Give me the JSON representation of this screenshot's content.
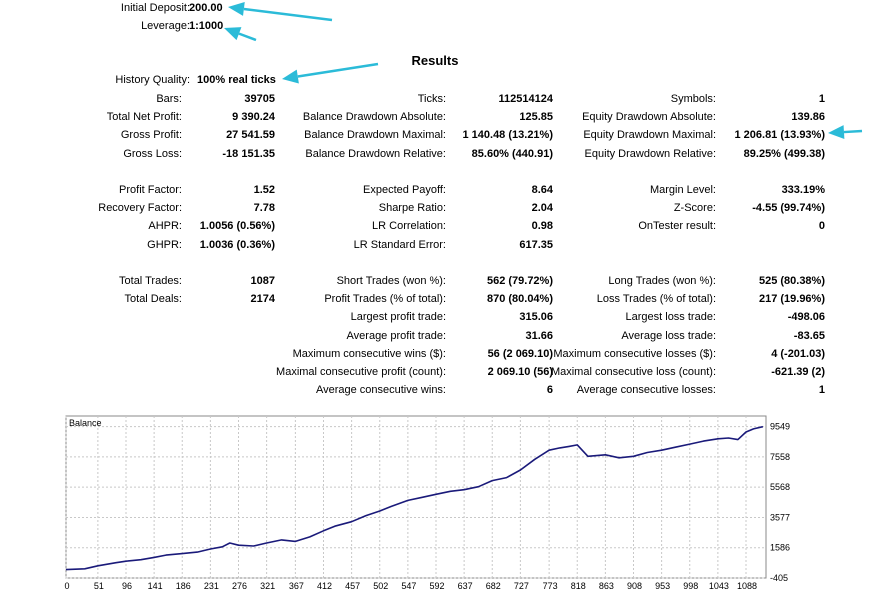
{
  "header": {
    "initial_deposit_label": "Initial Deposit:",
    "initial_deposit_value": "200.00",
    "leverage_label": "Leverage:",
    "leverage_value": "1:1000",
    "results_title": "Results",
    "history_quality_label": "History Quality:",
    "history_quality_value": "100% real ticks",
    "accent_color": "#2bbbd8"
  },
  "stats": [
    [
      {
        "label": "Bars:",
        "value": "39705"
      },
      {
        "label": "Total Net Profit:",
        "value": "9 390.24"
      },
      {
        "label": "Gross Profit:",
        "value": "27 541.59"
      },
      {
        "label": "Gross Loss:",
        "value": "-18 151.35"
      },
      null,
      {
        "label": "Profit Factor:",
        "value": "1.52"
      },
      {
        "label": "Recovery Factor:",
        "value": "7.78"
      },
      {
        "label": "AHPR:",
        "value": "1.0056 (0.56%)"
      },
      {
        "label": "GHPR:",
        "value": "1.0036 (0.36%)"
      },
      null,
      {
        "label": "Total Trades:",
        "value": "1087"
      },
      {
        "label": "Total Deals:",
        "value": "2174"
      }
    ],
    [
      {
        "label": "Ticks:",
        "value": "112514124"
      },
      {
        "label": "Balance Drawdown Absolute:",
        "value": "125.85"
      },
      {
        "label": "Balance Drawdown Maximal:",
        "value": "1 140.48 (13.21%)"
      },
      {
        "label": "Balance Drawdown Relative:",
        "value": "85.60% (440.91)"
      },
      null,
      {
        "label": "Expected Payoff:",
        "value": "8.64"
      },
      {
        "label": "Sharpe Ratio:",
        "value": "2.04"
      },
      {
        "label": "LR Correlation:",
        "value": "0.98"
      },
      {
        "label": "LR Standard Error:",
        "value": "617.35"
      },
      null,
      {
        "label": "Short Trades (won %):",
        "value": "562 (79.72%)"
      },
      {
        "label": "Profit Trades (% of total):",
        "value": "870 (80.04%)"
      },
      {
        "label": "Largest profit trade:",
        "value": "315.06"
      },
      {
        "label": "Average profit trade:",
        "value": "31.66"
      },
      {
        "label": "Maximum consecutive wins ($):",
        "value": "56 (2 069.10)"
      },
      {
        "label": "Maximal consecutive profit (count):",
        "value": "2 069.10 (56)"
      },
      {
        "label": "Average consecutive wins:",
        "value": "6"
      }
    ],
    [
      {
        "label": "Symbols:",
        "value": "1"
      },
      {
        "label": "Equity Drawdown Absolute:",
        "value": "139.86"
      },
      {
        "label": "Equity Drawdown Maximal:",
        "value": "1 206.81 (13.93%)"
      },
      {
        "label": "Equity Drawdown Relative:",
        "value": "89.25% (499.38)"
      },
      null,
      {
        "label": "Margin Level:",
        "value": "333.19%"
      },
      {
        "label": "Z-Score:",
        "value": "-4.55 (99.74%)"
      },
      {
        "label": "OnTester result:",
        "value": "0"
      },
      null,
      null,
      {
        "label": "Long Trades (won %):",
        "value": "525 (80.38%)"
      },
      {
        "label": "Loss Trades (% of total):",
        "value": "217 (19.96%)"
      },
      {
        "label": "Largest loss trade:",
        "value": "-498.06"
      },
      {
        "label": "Average loss trade:",
        "value": "-83.65"
      },
      {
        "label": "Maximum consecutive losses ($):",
        "value": "4 (-201.03)"
      },
      {
        "label": "Maximal consecutive loss (count):",
        "value": "-621.39 (2)"
      },
      {
        "label": "Average consecutive losses:",
        "value": "1"
      }
    ]
  ],
  "chart_data": {
    "type": "line",
    "title": "Balance",
    "line_color": "#1a1a7a",
    "grid": true,
    "x_ticks": [
      0,
      51,
      96,
      141,
      186,
      231,
      276,
      321,
      367,
      412,
      457,
      502,
      547,
      592,
      637,
      682,
      727,
      773,
      818,
      863,
      908,
      953,
      998,
      1043,
      1088
    ],
    "y_ticks": [
      -405,
      1586,
      3577,
      5568,
      7558,
      9549
    ],
    "xlim": [
      0,
      1120
    ],
    "ylim": [
      -405,
      10250
    ],
    "series": [
      {
        "x": [
          0,
          30,
          51,
          80,
          96,
          120,
          141,
          160,
          186,
          210,
          231,
          250,
          262,
          276,
          300,
          321,
          345,
          367,
          390,
          412,
          430,
          457,
          480,
          502,
          520,
          547,
          570,
          592,
          615,
          637,
          660,
          682,
          705,
          727,
          750,
          773,
          790,
          805,
          818,
          835,
          863,
          885,
          908,
          930,
          953,
          975,
          998,
          1020,
          1043,
          1060,
          1075,
          1088,
          1100,
          1115
        ],
        "y": [
          150,
          200,
          400,
          600,
          700,
          800,
          950,
          1100,
          1200,
          1300,
          1500,
          1650,
          1900,
          1750,
          1700,
          1900,
          2100,
          2000,
          2300,
          2700,
          3000,
          3300,
          3700,
          4000,
          4300,
          4700,
          4900,
          5100,
          5300,
          5400,
          5600,
          6000,
          6200,
          6700,
          7400,
          8000,
          8150,
          8250,
          8350,
          7600,
          7700,
          7500,
          7600,
          7850,
          8000,
          8200,
          8400,
          8600,
          8750,
          8800,
          8700,
          9200,
          9400,
          9549
        ]
      }
    ]
  }
}
